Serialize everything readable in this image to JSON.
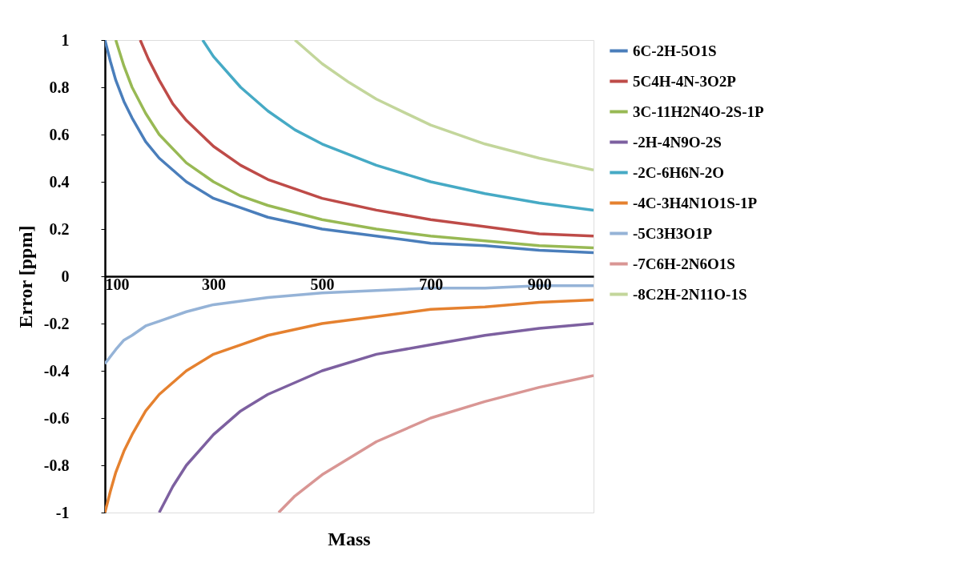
{
  "chart_data": {
    "type": "line",
    "xlabel": "Mass",
    "ylabel": "Error [ppm]",
    "xlim": [
      100,
      1000
    ],
    "xticks": [
      100,
      300,
      500,
      700,
      900
    ],
    "ylim": [
      -1,
      1
    ],
    "yticks": [
      -1,
      -0.8,
      -0.6,
      -0.4,
      -0.2,
      0,
      0.2,
      0.4,
      0.6,
      0.8,
      1
    ],
    "grid": false,
    "legend": "right",
    "marker": "none",
    "line_style": "solid",
    "series": [
      {
        "name": "6C-2H-5O1S",
        "color": "#4a7ebb",
        "x": [
          100,
          110,
          120,
          135,
          150,
          175,
          200,
          250,
          300,
          350,
          400,
          500,
          600,
          700,
          800,
          900,
          1000
        ],
        "values": [
          1,
          0.91,
          0.83,
          0.74,
          0.67,
          0.57,
          0.5,
          0.4,
          0.33,
          0.29,
          0.25,
          0.2,
          0.17,
          0.14,
          0.13,
          0.11,
          0.1
        ]
      },
      {
        "name": "5C4H-4N-3O2P",
        "color": "#be4b48",
        "x": [
          165,
          180,
          200,
          225,
          250,
          300,
          350,
          400,
          500,
          600,
          700,
          800,
          900,
          1000
        ],
        "values": [
          1,
          0.92,
          0.83,
          0.73,
          0.66,
          0.55,
          0.47,
          0.41,
          0.33,
          0.28,
          0.24,
          0.21,
          0.18,
          0.17
        ]
      },
      {
        "name": "3C-11H2N4O-2S-1P",
        "color": "#98b954",
        "x": [
          120,
          135,
          150,
          175,
          200,
          250,
          300,
          350,
          400,
          500,
          600,
          700,
          800,
          900,
          1000
        ],
        "values": [
          1,
          0.89,
          0.8,
          0.69,
          0.6,
          0.48,
          0.4,
          0.34,
          0.3,
          0.24,
          0.2,
          0.17,
          0.15,
          0.13,
          0.12
        ]
      },
      {
        "name": "-2H-4N9O-2S",
        "color": "#7d60a0",
        "x": [
          200,
          225,
          250,
          300,
          350,
          400,
          500,
          600,
          700,
          800,
          900,
          1000
        ],
        "values": [
          -1,
          -0.89,
          -0.8,
          -0.67,
          -0.57,
          -0.5,
          -0.4,
          -0.33,
          -0.29,
          -0.25,
          -0.22,
          -0.2
        ]
      },
      {
        "name": "-2C-6H6N-2O",
        "color": "#46aac5",
        "x": [
          280,
          300,
          350,
          400,
          450,
          500,
          600,
          700,
          800,
          900,
          1000
        ],
        "values": [
          1,
          0.93,
          0.8,
          0.7,
          0.62,
          0.56,
          0.47,
          0.4,
          0.35,
          0.31,
          0.28
        ]
      },
      {
        "name": "-4C-3H4N1O1S-1P",
        "color": "#e5812f",
        "x": [
          100,
          110,
          120,
          135,
          150,
          175,
          200,
          250,
          300,
          350,
          400,
          500,
          600,
          700,
          800,
          900,
          1000
        ],
        "values": [
          -1,
          -0.91,
          -0.83,
          -0.74,
          -0.67,
          -0.57,
          -0.5,
          -0.4,
          -0.33,
          -0.29,
          -0.25,
          -0.2,
          -0.17,
          -0.14,
          -0.13,
          -0.11,
          -0.1
        ]
      },
      {
        "name": "-5C3H3O1P",
        "color": "#95b3d7",
        "x": [
          100,
          110,
          120,
          135,
          150,
          175,
          200,
          250,
          300,
          400,
          500,
          600,
          700,
          800,
          900,
          1000
        ],
        "values": [
          -0.37,
          -0.34,
          -0.31,
          -0.27,
          -0.25,
          -0.21,
          -0.19,
          -0.15,
          -0.12,
          -0.09,
          -0.07,
          -0.06,
          -0.05,
          -0.05,
          -0.04,
          -0.04
        ]
      },
      {
        "name": "-7C6H-2N6O1S",
        "color": "#d99694",
        "x": [
          420,
          450,
          500,
          600,
          700,
          800,
          900,
          1000
        ],
        "values": [
          -1,
          -0.93,
          -0.84,
          -0.7,
          -0.6,
          -0.53,
          -0.47,
          -0.42
        ]
      },
      {
        "name": "-8C2H-2N11O-1S",
        "color": "#c3d69b",
        "x": [
          450,
          500,
          550,
          600,
          700,
          800,
          900,
          1000
        ],
        "values": [
          1,
          0.9,
          0.82,
          0.75,
          0.64,
          0.56,
          0.5,
          0.45
        ]
      }
    ]
  }
}
